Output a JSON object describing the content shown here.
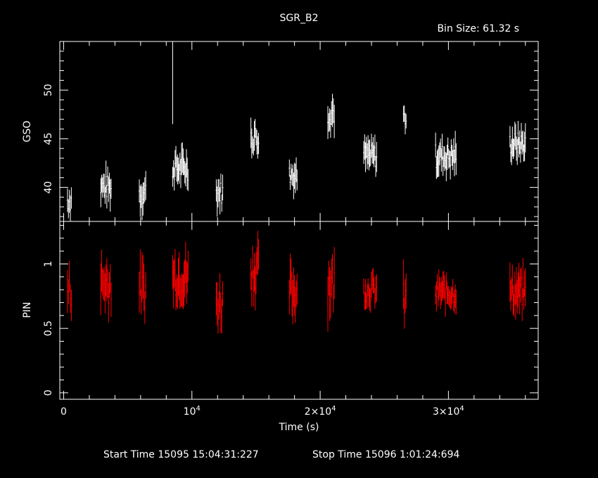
{
  "chart_data": {
    "type": "scatter",
    "title": "SGR_B2",
    "bin_size": "Bin Size: 61.32 s",
    "xlabel": "Time (s)",
    "xlim": [
      -300,
      37000
    ],
    "x_ticks": [
      {
        "value": 0,
        "label": "0"
      },
      {
        "value": 10000,
        "label": "10^4"
      },
      {
        "value": 20000,
        "label": "2×10^4"
      },
      {
        "value": 30000,
        "label": "3×10^4"
      }
    ],
    "footer": {
      "start": "Start Time 15095 15:04:31:227",
      "stop": "Stop Time 15096  1:01:24:694"
    },
    "panels": [
      {
        "name": "GSO",
        "ylabel": "GSO",
        "color": "#ffffff",
        "ylim": [
          36.5,
          55
        ],
        "ticks": [
          40,
          45,
          50
        ],
        "segments": [
          {
            "t0": 300,
            "t1": 600,
            "mean": 38.7,
            "err": 1.3
          },
          {
            "t0": 2900,
            "t1": 3700,
            "mean": 40.0,
            "err": 1.4
          },
          {
            "t0": 5900,
            "t1": 6400,
            "mean": 39.5,
            "err": 1.5
          },
          {
            "t0": 8500,
            "t1": 9700,
            "mean": 42.0,
            "err": 1.4
          },
          {
            "t0": 11900,
            "t1": 12400,
            "mean": 39.5,
            "err": 1.3
          },
          {
            "t0": 14600,
            "t1": 15200,
            "mean": 45.2,
            "err": 1.4
          },
          {
            "t0": 17600,
            "t1": 18200,
            "mean": 41.3,
            "err": 1.3
          },
          {
            "t0": 20600,
            "t1": 21100,
            "mean": 47.8,
            "err": 1.5
          },
          {
            "t0": 23400,
            "t1": 24400,
            "mean": 43.2,
            "err": 1.3
          },
          {
            "t0": 26500,
            "t1": 26700,
            "mean": 47.2,
            "err": 1.2
          },
          {
            "t0": 29000,
            "t1": 30600,
            "mean": 43.2,
            "err": 1.4
          },
          {
            "t0": 34800,
            "t1": 36000,
            "mean": 44.5,
            "err": 1.3
          }
        ],
        "spike": {
          "x": 8500,
          "y_low": 46.5,
          "y_high": 55
        }
      },
      {
        "name": "PIN",
        "ylabel": "PIN",
        "color": "#ff0000",
        "ylim": [
          -0.05,
          1.33
        ],
        "ticks": [
          0,
          0.5,
          1
        ],
        "segments": [
          {
            "t0": 300,
            "t1": 600,
            "mean": 0.8,
            "err": 0.15
          },
          {
            "t0": 2900,
            "t1": 3700,
            "mean": 0.85,
            "err": 0.17
          },
          {
            "t0": 5900,
            "t1": 6400,
            "mean": 0.8,
            "err": 0.16
          },
          {
            "t0": 8500,
            "t1": 9700,
            "mean": 0.9,
            "err": 0.16
          },
          {
            "t0": 11900,
            "t1": 12400,
            "mean": 0.7,
            "err": 0.15
          },
          {
            "t0": 14600,
            "t1": 15200,
            "mean": 0.95,
            "err": 0.16
          },
          {
            "t0": 17600,
            "t1": 18200,
            "mean": 0.8,
            "err": 0.16
          },
          {
            "t0": 20600,
            "t1": 21100,
            "mean": 0.85,
            "err": 0.18
          },
          {
            "t0": 23400,
            "t1": 24400,
            "mean": 0.8,
            "err": 0.1
          },
          {
            "t0": 26500,
            "t1": 26700,
            "mean": 0.7,
            "err": 0.17
          },
          {
            "t0": 29000,
            "t1": 30600,
            "mean": 0.78,
            "err": 0.1
          },
          {
            "t0": 34800,
            "t1": 36000,
            "mean": 0.78,
            "err": 0.13
          }
        ]
      }
    ]
  }
}
